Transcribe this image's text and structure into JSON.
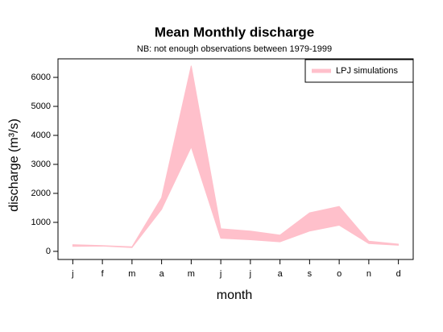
{
  "chart_data": {
    "type": "range-area",
    "title": "Mean Monthly discharge",
    "subtitle": "NB: not enough observations between 1979-1999",
    "x_label": "month",
    "y_label": "discharge (m³/s)",
    "categories": [
      "j",
      "f",
      "m",
      "a",
      "m",
      "j",
      "j",
      "a",
      "s",
      "o",
      "n",
      "d"
    ],
    "series": [
      {
        "name": "LPJ simulations",
        "color": "#ffc0cb",
        "upper": [
          230,
          200,
          160,
          1850,
          6400,
          780,
          700,
          560,
          1330,
          1550,
          350,
          250
        ],
        "lower": [
          170,
          180,
          130,
          1450,
          3600,
          450,
          400,
          330,
          700,
          900,
          270,
          210
        ]
      }
    ],
    "ylim": [
      -280,
      6640
    ],
    "yticks": [
      0,
      1000,
      2000,
      3000,
      4000,
      5000,
      6000
    ],
    "legend": "top-right"
  }
}
